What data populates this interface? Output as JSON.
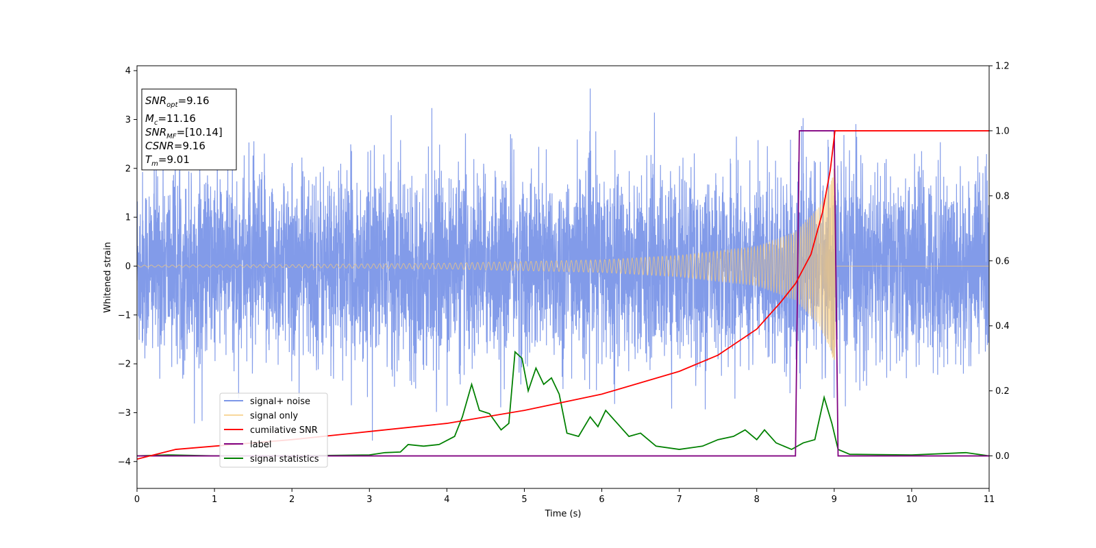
{
  "chart_data": {
    "type": "line",
    "xlabel": "Time (s)",
    "ylabel": "Whitened strain",
    "xlim": [
      0,
      11
    ],
    "ylim_left": [
      -4.55,
      4.1
    ],
    "ylim_right": [
      -0.1,
      1.2
    ],
    "x_ticks": [
      0,
      1,
      2,
      3,
      4,
      5,
      6,
      7,
      8,
      9,
      10,
      11
    ],
    "y_ticks_left": [
      -4,
      -3,
      -2,
      -1,
      0,
      1,
      2,
      3,
      4
    ],
    "y_ticks_right": [
      0.0,
      0.2,
      0.4,
      0.6,
      0.8,
      1.0,
      1.2
    ],
    "grid": false,
    "legend_position": "lower-left",
    "series": [
      {
        "name": "signal+ noise",
        "axis": "left",
        "color": "#7b96e8",
        "description_stats": {
          "sigma": 0.95,
          "x_range": [
            0,
            11
          ]
        }
      },
      {
        "name": "signal only",
        "axis": "left",
        "color": "#f5c97a",
        "chirp_end": 9.01,
        "envelope": [
          [
            0,
            0.02
          ],
          [
            2,
            0.03
          ],
          [
            4,
            0.06
          ],
          [
            6,
            0.13
          ],
          [
            7,
            0.22
          ],
          [
            8,
            0.4
          ],
          [
            8.5,
            0.7
          ],
          [
            8.8,
            1.2
          ],
          [
            8.95,
            1.7
          ],
          [
            9.01,
            2.1
          ]
        ]
      },
      {
        "name": "cumilative SNR",
        "axis": "right",
        "color": "#ff0000",
        "points": [
          [
            0,
            -0.01
          ],
          [
            0.5,
            0.02
          ],
          [
            1,
            0.03
          ],
          [
            2,
            0.05
          ],
          [
            3,
            0.075
          ],
          [
            4,
            0.1
          ],
          [
            5,
            0.14
          ],
          [
            6,
            0.19
          ],
          [
            7,
            0.26
          ],
          [
            7.5,
            0.31
          ],
          [
            8,
            0.39
          ],
          [
            8.3,
            0.47
          ],
          [
            8.5,
            0.53
          ],
          [
            8.7,
            0.62
          ],
          [
            8.85,
            0.75
          ],
          [
            8.95,
            0.88
          ],
          [
            9.01,
            1.0
          ],
          [
            11,
            1.0
          ]
        ]
      },
      {
        "name": "label",
        "axis": "right",
        "color": "#800080",
        "points": [
          [
            0,
            0
          ],
          [
            8.5,
            0
          ],
          [
            8.55,
            1.0
          ],
          [
            9.0,
            1.0
          ],
          [
            9.05,
            0
          ],
          [
            11,
            0
          ]
        ]
      },
      {
        "name": "signal statistics",
        "axis": "right",
        "color": "#008000",
        "points": [
          [
            0,
            0.0
          ],
          [
            0.4,
            0.003
          ],
          [
            1,
            0.0
          ],
          [
            2,
            0.0
          ],
          [
            3,
            0.003
          ],
          [
            3.2,
            0.01
          ],
          [
            3.4,
            0.012
          ],
          [
            3.5,
            0.035
          ],
          [
            3.7,
            0.03
          ],
          [
            3.9,
            0.035
          ],
          [
            4.1,
            0.06
          ],
          [
            4.2,
            0.12
          ],
          [
            4.32,
            0.22
          ],
          [
            4.42,
            0.14
          ],
          [
            4.55,
            0.13
          ],
          [
            4.7,
            0.08
          ],
          [
            4.8,
            0.1
          ],
          [
            4.88,
            0.32
          ],
          [
            4.97,
            0.3
          ],
          [
            5.05,
            0.2
          ],
          [
            5.15,
            0.27
          ],
          [
            5.25,
            0.22
          ],
          [
            5.35,
            0.24
          ],
          [
            5.45,
            0.19
          ],
          [
            5.55,
            0.07
          ],
          [
            5.7,
            0.06
          ],
          [
            5.85,
            0.12
          ],
          [
            5.95,
            0.09
          ],
          [
            6.05,
            0.14
          ],
          [
            6.2,
            0.1
          ],
          [
            6.35,
            0.06
          ],
          [
            6.5,
            0.07
          ],
          [
            6.7,
            0.03
          ],
          [
            7.0,
            0.02
          ],
          [
            7.3,
            0.03
          ],
          [
            7.5,
            0.05
          ],
          [
            7.7,
            0.06
          ],
          [
            7.85,
            0.08
          ],
          [
            8.0,
            0.05
          ],
          [
            8.1,
            0.08
          ],
          [
            8.25,
            0.04
          ],
          [
            8.45,
            0.02
          ],
          [
            8.6,
            0.04
          ],
          [
            8.75,
            0.05
          ],
          [
            8.87,
            0.18
          ],
          [
            8.97,
            0.1
          ],
          [
            9.05,
            0.02
          ],
          [
            9.2,
            0.005
          ],
          [
            10.0,
            0.003
          ],
          [
            10.7,
            0.01
          ],
          [
            11,
            0.0
          ]
        ]
      }
    ],
    "annotation": {
      "lines": [
        {
          "id": "snr_opt",
          "label": "SNR",
          "sub": "opt",
          "value": "=9.16"
        },
        {
          "id": "mc",
          "label": "M",
          "sub": "c",
          "value": "=11.16"
        },
        {
          "id": "snr_mf",
          "label": "SNR",
          "sub": "MF",
          "value": "=[10.14]"
        },
        {
          "id": "csnr",
          "label": "CSNR",
          "sub": "",
          "value": "=9.16"
        },
        {
          "id": "tm",
          "label": "T",
          "sub": "m",
          "value": "=9.01"
        }
      ]
    }
  }
}
